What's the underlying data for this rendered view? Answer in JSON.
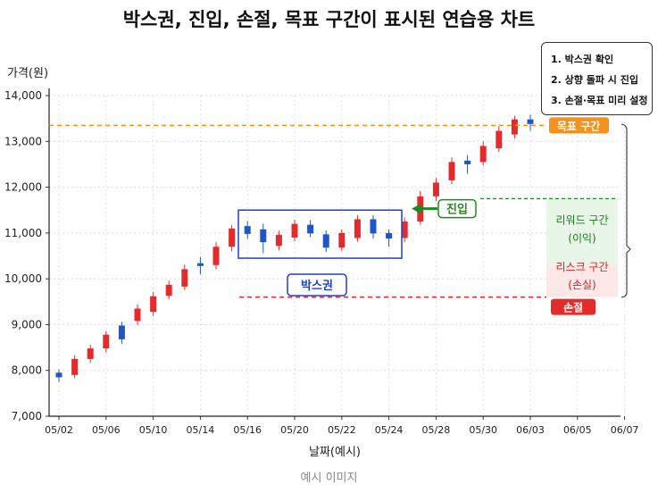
{
  "title": "박스권, 진입, 손절, 목표 구간이 표시된 연습용 차트",
  "caption": "예시 이미지",
  "steps": [
    "1. 박스권 확인",
    "2. 상향 돌파 시 진입",
    "3. 손절·목표 미리 설정"
  ],
  "chart_data": {
    "type": "candlestick",
    "ylabel": "가격(원)",
    "xlabel": "날짜(예시)",
    "ylim": [
      7000,
      14000
    ],
    "yticks": [
      7000,
      8000,
      9000,
      10000,
      11000,
      12000,
      13000,
      14000
    ],
    "ytick_labels": [
      "7,000",
      "8,000",
      "9,000",
      "10,000",
      "11,000",
      "12,000",
      "13,000",
      "14,000"
    ],
    "xtick_labels": [
      "05/02",
      "05/06",
      "05/10",
      "05/14",
      "05/16",
      "05/20",
      "05/22",
      "05/24",
      "05/28",
      "05/30",
      "06/03",
      "06/05",
      "06/07"
    ],
    "xtick_positions": [
      0,
      3,
      6,
      9,
      12,
      15,
      18,
      21,
      24,
      27,
      30,
      33,
      36
    ],
    "candles": [
      {
        "o": 7950,
        "c": 7850,
        "h": 8020,
        "l": 7750,
        "up": false
      },
      {
        "o": 7900,
        "c": 8250,
        "h": 8330,
        "l": 7830,
        "up": true
      },
      {
        "o": 8250,
        "c": 8480,
        "h": 8560,
        "l": 8160,
        "up": true
      },
      {
        "o": 8480,
        "c": 8780,
        "h": 8860,
        "l": 8390,
        "up": true
      },
      {
        "o": 8980,
        "c": 8680,
        "h": 9060,
        "l": 8580,
        "up": false
      },
      {
        "o": 9080,
        "c": 9350,
        "h": 9440,
        "l": 8990,
        "up": true
      },
      {
        "o": 9280,
        "c": 9620,
        "h": 9710,
        "l": 9190,
        "up": true
      },
      {
        "o": 9630,
        "c": 9870,
        "h": 9960,
        "l": 9550,
        "up": true
      },
      {
        "o": 9830,
        "c": 10210,
        "h": 10310,
        "l": 9760,
        "up": true
      },
      {
        "o": 10340,
        "c": 10280,
        "h": 10480,
        "l": 10100,
        "up": false
      },
      {
        "o": 10300,
        "c": 10700,
        "h": 10800,
        "l": 10210,
        "up": true
      },
      {
        "o": 10700,
        "c": 11100,
        "h": 11170,
        "l": 10600,
        "up": true
      },
      {
        "o": 11150,
        "c": 10980,
        "h": 11260,
        "l": 10870,
        "up": false
      },
      {
        "o": 11080,
        "c": 10800,
        "h": 11200,
        "l": 10560,
        "up": false
      },
      {
        "o": 10720,
        "c": 10960,
        "h": 11050,
        "l": 10620,
        "up": true
      },
      {
        "o": 10900,
        "c": 11200,
        "h": 11290,
        "l": 10820,
        "up": true
      },
      {
        "o": 11180,
        "c": 10990,
        "h": 11280,
        "l": 10910,
        "up": false
      },
      {
        "o": 10970,
        "c": 10680,
        "h": 11060,
        "l": 10580,
        "up": false
      },
      {
        "o": 10680,
        "c": 11000,
        "h": 11080,
        "l": 10610,
        "up": true
      },
      {
        "o": 10890,
        "c": 11300,
        "h": 11390,
        "l": 10810,
        "up": true
      },
      {
        "o": 11300,
        "c": 10990,
        "h": 11390,
        "l": 10880,
        "up": false
      },
      {
        "o": 11000,
        "c": 10880,
        "h": 11080,
        "l": 10700,
        "up": false
      },
      {
        "o": 10890,
        "c": 11250,
        "h": 11340,
        "l": 10800,
        "up": true
      },
      {
        "o": 11250,
        "c": 11800,
        "h": 11920,
        "l": 11180,
        "up": true
      },
      {
        "o": 11800,
        "c": 12100,
        "h": 12200,
        "l": 11700,
        "up": true
      },
      {
        "o": 12150,
        "c": 12550,
        "h": 12650,
        "l": 12070,
        "up": true
      },
      {
        "o": 12580,
        "c": 12500,
        "h": 12700,
        "l": 12290,
        "up": false
      },
      {
        "o": 12550,
        "c": 12900,
        "h": 13000,
        "l": 12470,
        "up": true
      },
      {
        "o": 12850,
        "c": 13230,
        "h": 13330,
        "l": 12770,
        "up": true
      },
      {
        "o": 13150,
        "c": 13480,
        "h": 13560,
        "l": 13060,
        "up": true
      },
      {
        "o": 13480,
        "c": 13380,
        "h": 13580,
        "l": 13230,
        "up": false
      }
    ],
    "box": {
      "from": 11,
      "to": 22,
      "low": 10450,
      "high": 11500,
      "label": "박스권"
    },
    "entry": {
      "index": 22,
      "price": 11750,
      "label": "진입"
    },
    "stop": {
      "price": 9600,
      "label": "손절"
    },
    "target": {
      "price": 13350,
      "label": "목표 구간"
    },
    "reward_label": [
      "리워드 구간",
      "(이익)"
    ],
    "risk_label": [
      "리스크 구간",
      "(손실)"
    ],
    "colors": {
      "up": "#e32b2b",
      "down": "#1e56c7",
      "target": "#f5921e",
      "stop": "#e32b2b",
      "entry": "#1e8a1e",
      "box": "#1e3fcf",
      "reward_bg": "#e7f6e7",
      "risk_bg": "#fde7e7"
    }
  }
}
